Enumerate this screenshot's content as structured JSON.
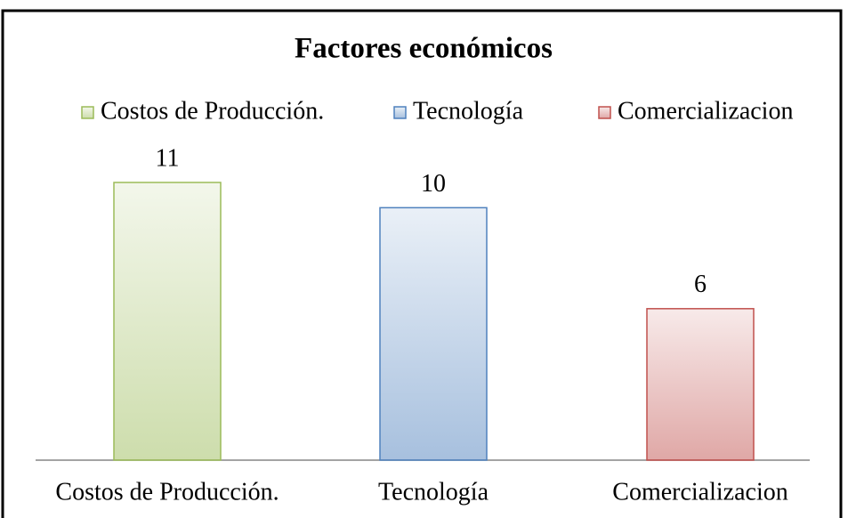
{
  "chart_data": {
    "type": "bar",
    "title": "Factores económicos",
    "categories": [
      "Costos de Producción.",
      "Tecnología",
      "Comercializacion"
    ],
    "values": [
      11,
      10,
      6
    ],
    "colors": [
      "#9bbb59",
      "#4f81bd",
      "#c0504d"
    ],
    "legend": "top",
    "grid": false
  }
}
